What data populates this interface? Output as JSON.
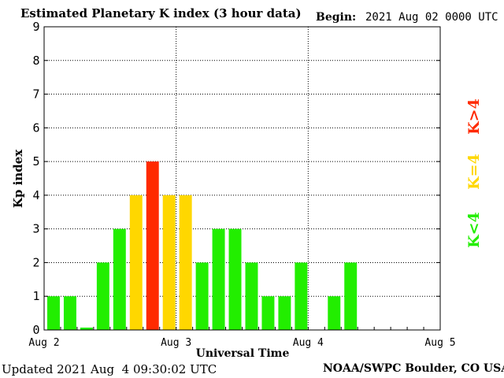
{
  "header": {
    "title": "Estimated Planetary K index (3 hour data)",
    "begin_label": "Begin:",
    "begin_value": "2021 Aug 02 0000 UTC"
  },
  "footer": {
    "updated": "Updated 2021 Aug  4 09:30:02 UTC",
    "credit": "NOAA/SWPC Boulder, CO USA"
  },
  "legend": [
    {
      "label": "K>4",
      "color": "#ff2a00"
    },
    {
      "label": "K=4",
      "color": "#ffd700"
    },
    {
      "label": "K<4",
      "color": "#22ee00"
    }
  ],
  "chart_data": {
    "type": "bar",
    "ylabel": "Kp index",
    "xlabel": "Universal Time",
    "ylim": [
      0,
      9
    ],
    "yticks": [
      0,
      1,
      2,
      3,
      4,
      5,
      6,
      7,
      8,
      9
    ],
    "xlim": [
      "2021-08-02 00:00",
      "2021-08-05 00:00"
    ],
    "xticks": [
      "Aug 2",
      "Aug 3",
      "Aug 4",
      "Aug 5"
    ],
    "interval_hours": 3,
    "values": [
      1,
      1,
      0.07,
      2,
      3,
      4,
      5,
      4,
      4,
      2,
      3,
      3,
      2,
      1,
      1,
      2,
      0,
      1,
      2
    ],
    "colors": {
      "below4": "#22ee00",
      "equal4": "#ffd700",
      "above4": "#ff2a00"
    },
    "grid": true
  }
}
